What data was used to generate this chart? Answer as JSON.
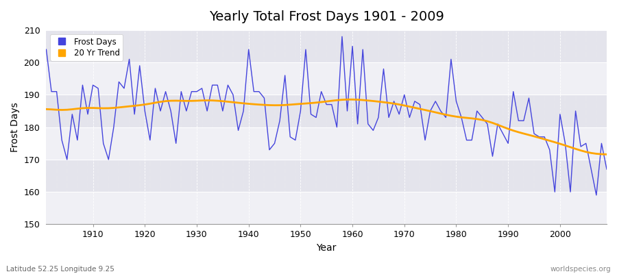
{
  "title": "Yearly Total Frost Days 1901 - 2009",
  "xlabel": "Year",
  "ylabel": "Frost Days",
  "footer_left": "Latitude 52.25 Longitude 9.25",
  "footer_right": "worldspecies.org",
  "line_color": "#4444dd",
  "trend_color": "#FFA500",
  "bg_color_light": "#f0f0f5",
  "bg_color_dark": "#e4e4ec",
  "ylim": [
    150,
    210
  ],
  "xlim": [
    1901,
    2009
  ],
  "yticks": [
    150,
    160,
    170,
    180,
    190,
    200,
    210
  ],
  "xticks": [
    1910,
    1920,
    1930,
    1940,
    1950,
    1960,
    1970,
    1980,
    1990,
    2000
  ],
  "frost_days": [
    204,
    191,
    191,
    176,
    170,
    184,
    176,
    193,
    184,
    193,
    192,
    175,
    170,
    180,
    194,
    192,
    201,
    184,
    199,
    185,
    176,
    192,
    185,
    191,
    185,
    175,
    191,
    185,
    191,
    191,
    192,
    185,
    193,
    193,
    185,
    193,
    190,
    179,
    185,
    204,
    191,
    191,
    189,
    173,
    175,
    182,
    196,
    177,
    176,
    185,
    204,
    184,
    183,
    191,
    187,
    187,
    180,
    208,
    185,
    205,
    181,
    204,
    181,
    179,
    183,
    198,
    183,
    188,
    184,
    190,
    183,
    188,
    187,
    176,
    185,
    188,
    185,
    183,
    201,
    188,
    183,
    176,
    176,
    185,
    183,
    181,
    171,
    181,
    178,
    175,
    191,
    182,
    182,
    189,
    178,
    177,
    177,
    173,
    160,
    184,
    175,
    160,
    185,
    174,
    175,
    167,
    159,
    175,
    167
  ],
  "legend_line": "Frost Days",
  "legend_trend": "20 Yr Trend",
  "title_fontsize": 14,
  "axis_fontsize": 9,
  "label_fontsize": 10
}
